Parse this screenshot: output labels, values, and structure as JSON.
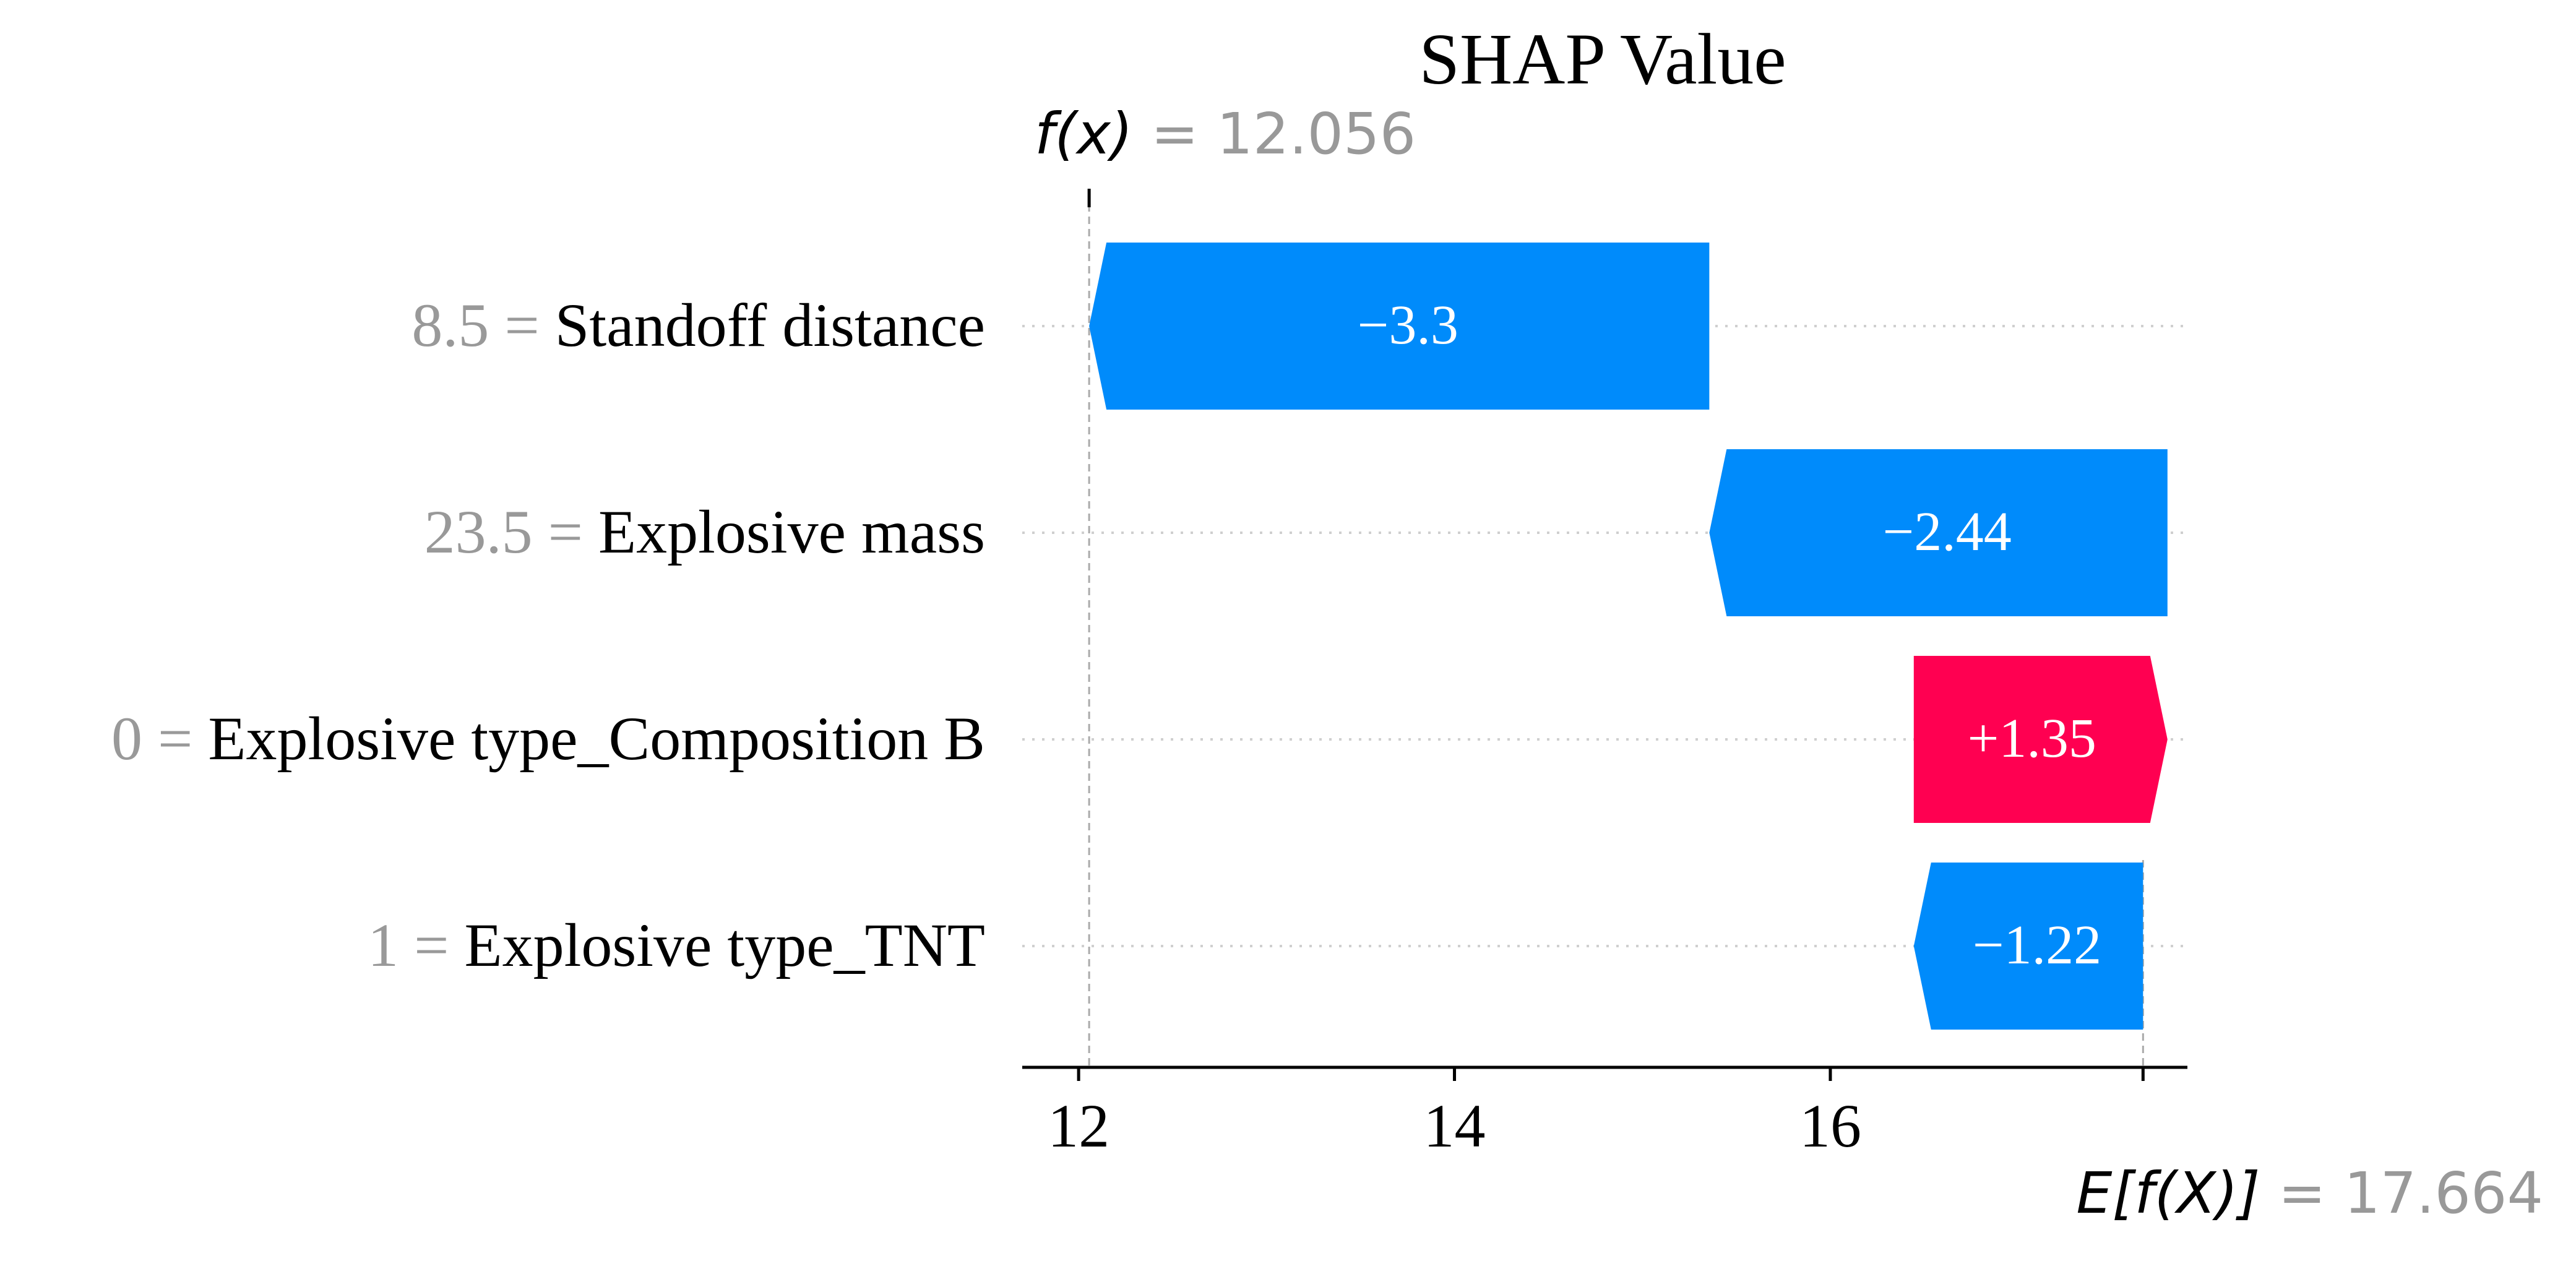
{
  "chart_data": {
    "type": "waterfall",
    "title": "SHAP Value",
    "fx": {
      "label": "f(x)",
      "value": "12.056",
      "numeric": 12.056
    },
    "base": {
      "label": "E[f(X)]",
      "value": "17.664",
      "numeric": 17.664
    },
    "features": [
      {
        "value": "8.5",
        "name": "Standoff distance",
        "shap": -3.3,
        "label": "−3.3",
        "start": 15.356,
        "end": 12.056
      },
      {
        "value": "23.5",
        "name": "Explosive mass",
        "shap": -2.44,
        "label": "−2.44",
        "start": 17.794,
        "end": 15.356
      },
      {
        "value": "0",
        "name": "Explosive type_Composition B",
        "shap": 1.35,
        "label": "+1.35",
        "start": 16.444,
        "end": 17.794
      },
      {
        "value": "1",
        "name": "Explosive type_TNT",
        "shap": -1.22,
        "label": "−1.22",
        "start": 17.664,
        "end": 16.444
      }
    ],
    "xticks": [
      12,
      14,
      16
    ],
    "xtick_labels": [
      "12",
      "14",
      "16"
    ],
    "xlim": [
      11.7,
      17.9
    ],
    "colors": {
      "positive": "#ff0051",
      "negative": "#008bfb",
      "feature_value": "#999999",
      "text": "#000000"
    }
  }
}
